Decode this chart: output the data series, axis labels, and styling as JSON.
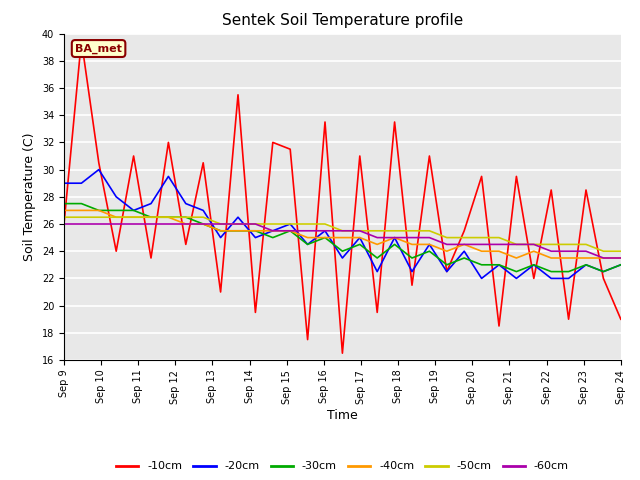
{
  "title": "Sentek Soil Temperature profile",
  "xlabel": "Time",
  "ylabel": "Soil Temperature (C)",
  "annotation": "BA_met",
  "ylim": [
    16,
    40
  ],
  "yticks": [
    16,
    18,
    20,
    22,
    24,
    26,
    28,
    30,
    32,
    34,
    36,
    38,
    40
  ],
  "xtick_labels": [
    "Sep 9",
    "Sep 10",
    "Sep 11",
    "Sep 12",
    "Sep 13",
    "Sep 14",
    "Sep 15",
    "Sep 16",
    "Sep 17",
    "Sep 18",
    "Sep 19",
    "Sep 20",
    "Sep 21",
    "Sep 22",
    "Sep 23",
    "Sep 24"
  ],
  "fig_bg_color": "#ffffff",
  "plot_bg_color": "#e8e8e8",
  "colors": {
    "-10cm": "#ff0000",
    "-20cm": "#0000ff",
    "-30cm": "#00aa00",
    "-40cm": "#ff9900",
    "-50cm": "#cccc00",
    "-60cm": "#aa00aa"
  },
  "series": {
    "-10cm": [
      26.0,
      39.5,
      30.5,
      24.0,
      31.0,
      23.5,
      32.0,
      24.5,
      30.5,
      21.0,
      35.5,
      19.5,
      32.0,
      31.5,
      17.5,
      33.5,
      16.5,
      31.0,
      19.5,
      33.5,
      21.5,
      31.0,
      22.5,
      25.5,
      29.5,
      18.5,
      29.5,
      22.0,
      28.5,
      19.0,
      28.5,
      22.0,
      19.0
    ],
    "-20cm": [
      29.0,
      29.0,
      30.0,
      28.0,
      27.0,
      27.5,
      29.5,
      27.5,
      27.0,
      25.0,
      26.5,
      25.0,
      25.5,
      26.0,
      24.5,
      25.5,
      23.5,
      25.0,
      22.5,
      25.0,
      22.5,
      24.5,
      22.5,
      24.0,
      22.0,
      23.0,
      22.0,
      23.0,
      22.0,
      22.0,
      23.0,
      22.5,
      23.0
    ],
    "-30cm": [
      27.5,
      27.5,
      27.0,
      27.0,
      27.0,
      26.5,
      26.5,
      26.5,
      26.0,
      25.5,
      25.5,
      25.5,
      25.0,
      25.5,
      24.5,
      25.0,
      24.0,
      24.5,
      23.5,
      24.5,
      23.5,
      24.0,
      23.0,
      23.5,
      23.0,
      23.0,
      22.5,
      23.0,
      22.5,
      22.5,
      23.0,
      22.5,
      23.0
    ],
    "-40cm": [
      27.0,
      27.0,
      27.0,
      26.5,
      26.5,
      26.5,
      26.5,
      26.0,
      26.0,
      25.5,
      25.5,
      25.5,
      25.5,
      25.5,
      25.0,
      25.0,
      25.0,
      25.0,
      24.5,
      25.0,
      24.5,
      24.5,
      24.0,
      24.5,
      24.0,
      24.0,
      23.5,
      24.0,
      23.5,
      23.5,
      23.5,
      23.5,
      23.5
    ],
    "-50cm": [
      26.5,
      26.5,
      26.5,
      26.5,
      26.5,
      26.5,
      26.5,
      26.5,
      26.5,
      26.0,
      26.0,
      26.0,
      26.0,
      26.0,
      26.0,
      26.0,
      25.5,
      25.5,
      25.5,
      25.5,
      25.5,
      25.5,
      25.0,
      25.0,
      25.0,
      25.0,
      24.5,
      24.5,
      24.5,
      24.5,
      24.5,
      24.0,
      24.0
    ],
    "-60cm": [
      26.0,
      26.0,
      26.0,
      26.0,
      26.0,
      26.0,
      26.0,
      26.0,
      26.0,
      26.0,
      26.0,
      26.0,
      25.5,
      25.5,
      25.5,
      25.5,
      25.5,
      25.5,
      25.0,
      25.0,
      25.0,
      25.0,
      24.5,
      24.5,
      24.5,
      24.5,
      24.5,
      24.5,
      24.0,
      24.0,
      24.0,
      23.5,
      23.5
    ]
  },
  "legend_order": [
    "-10cm",
    "-20cm",
    "-30cm",
    "-40cm",
    "-50cm",
    "-60cm"
  ]
}
